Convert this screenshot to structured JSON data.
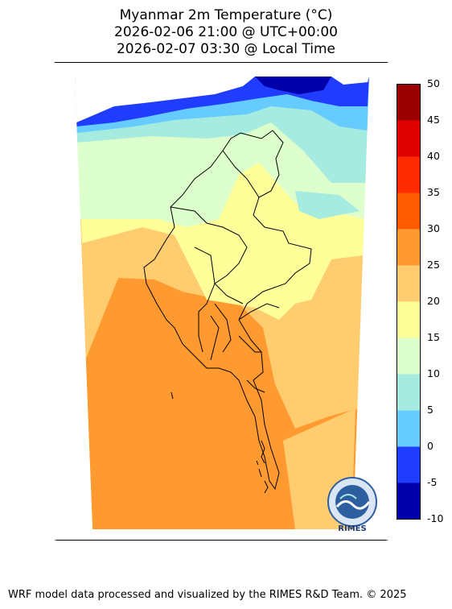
{
  "title": {
    "line1": "Myanmar 2m Temperature (°C)",
    "line2": "2026-02-06 21:00 @ UTC+00:00",
    "line3": "2026-02-07 03:30 @ Local Time"
  },
  "colorbar": {
    "ticks": [
      "50",
      "45",
      "40",
      "35",
      "30",
      "25",
      "20",
      "15",
      "10",
      "5",
      "0",
      "-5",
      "-10"
    ],
    "colors": [
      "#9b0000",
      "#e00000",
      "#ff2a00",
      "#ff5a00",
      "#ff9a30",
      "#ffcc70",
      "#ffff99",
      "#ddffcc",
      "#a6ebe0",
      "#66ccff",
      "#1f3cff",
      "#0000aa"
    ]
  },
  "logo": {
    "text": "RIMES"
  },
  "footer": "WRF model data processed and visualized by the RIMES R&D Team. © 2025"
}
